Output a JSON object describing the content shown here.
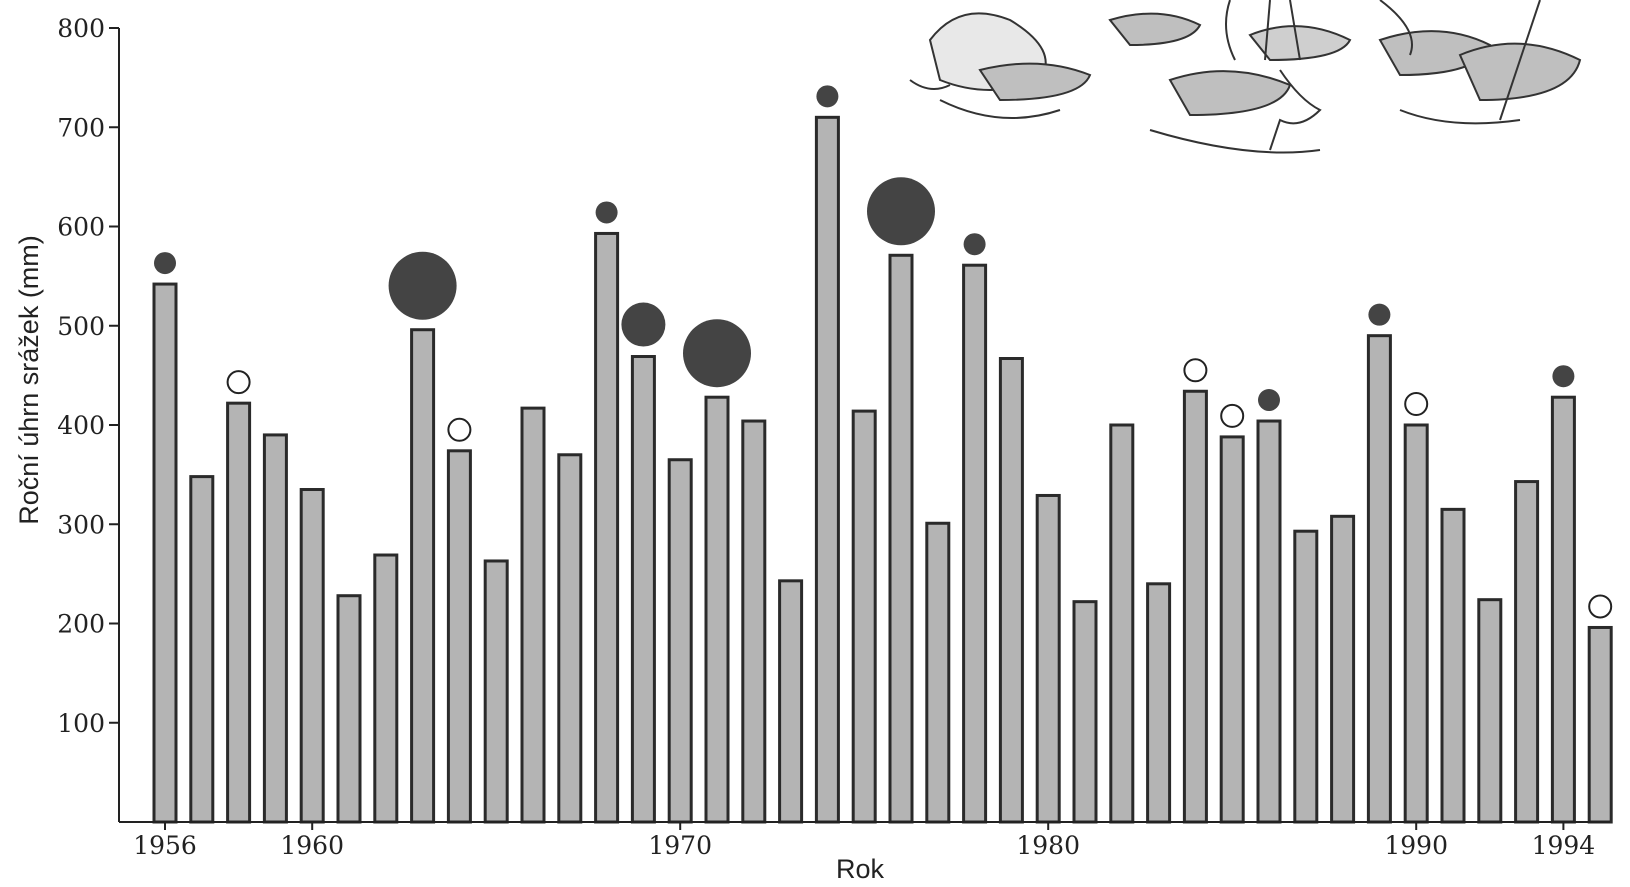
{
  "chart_data": {
    "type": "bar",
    "xlabel": "Rok",
    "ylabel": "Roční úhrn srážek (mm)",
    "ylim": [
      0,
      800
    ],
    "yticks": [
      100,
      200,
      300,
      400,
      500,
      600,
      700,
      800
    ],
    "x_tick_labels": [
      "1956",
      "1960",
      "1970",
      "1980",
      "1990",
      "1994"
    ],
    "categories": [
      "1956",
      "1957",
      "1958",
      "1959",
      "1960",
      "1961",
      "1962",
      "1963",
      "1964",
      "1965",
      "1966",
      "1967",
      "1968",
      "1969",
      "1970",
      "1971",
      "1972",
      "1973",
      "1974",
      "1975",
      "1976",
      "1977",
      "1978",
      "1979",
      "1980",
      "1981",
      "1982",
      "1983",
      "1984",
      "1985",
      "1986",
      "1987",
      "1988",
      "1989",
      "1990",
      "1991",
      "1992",
      "1993",
      "1994",
      "1995"
    ],
    "values": [
      542,
      348,
      422,
      390,
      335,
      228,
      269,
      496,
      374,
      263,
      417,
      370,
      593,
      469,
      365,
      428,
      404,
      243,
      710,
      414,
      571,
      301,
      561,
      467,
      329,
      222,
      400,
      240,
      434,
      388,
      404,
      293,
      308,
      490,
      400,
      315,
      224,
      343,
      428,
      196
    ],
    "markers": [
      {
        "year": "1956",
        "type": "filled",
        "size": "small"
      },
      {
        "year": "1958",
        "type": "open",
        "size": "small"
      },
      {
        "year": "1963",
        "type": "filled",
        "size": "large"
      },
      {
        "year": "1964",
        "type": "open",
        "size": "small"
      },
      {
        "year": "1968",
        "type": "filled",
        "size": "small"
      },
      {
        "year": "1969",
        "type": "filled",
        "size": "medium"
      },
      {
        "year": "1971",
        "type": "filled",
        "size": "large"
      },
      {
        "year": "1974",
        "type": "filled",
        "size": "small"
      },
      {
        "year": "1976",
        "type": "filled",
        "size": "large"
      },
      {
        "year": "1978",
        "type": "filled",
        "size": "small"
      },
      {
        "year": "1984",
        "type": "open",
        "size": "small"
      },
      {
        "year": "1985",
        "type": "open",
        "size": "small"
      },
      {
        "year": "1986",
        "type": "filled",
        "size": "small"
      },
      {
        "year": "1989",
        "type": "filled",
        "size": "small"
      },
      {
        "year": "1990",
        "type": "open",
        "size": "small"
      },
      {
        "year": "1994",
        "type": "filled",
        "size": "small"
      },
      {
        "year": "1995",
        "type": "open",
        "size": "small"
      }
    ],
    "grid": false,
    "legend": "none",
    "illustration": "waterbird-colony-drawing-top-right"
  }
}
